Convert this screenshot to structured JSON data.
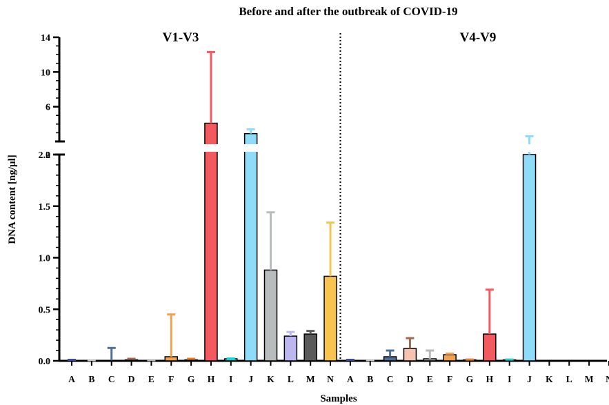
{
  "chart_data": {
    "type": "bar",
    "title": "Before and after the outbreak of COVID-19",
    "xlabel": "Samples",
    "ylabel": "DNA content [ng/µl]",
    "y_axis_break": {
      "lower_range": [
        0,
        2.0
      ],
      "upper_range": [
        2,
        14
      ],
      "lower_ticks": [
        "0.0",
        "0.5",
        "1.0",
        "1.5",
        "2.0"
      ],
      "upper_ticks": [
        "2",
        "6",
        "10",
        "14"
      ]
    },
    "groups": [
      {
        "name": "V1-V3",
        "categories": [
          "A",
          "B",
          "C",
          "D",
          "E",
          "F",
          "G",
          "H",
          "I",
          "J",
          "K",
          "L",
          "M",
          "N"
        ],
        "values": [
          0.005,
          0.003,
          0.005,
          0.01,
          0.003,
          0.04,
          0.01,
          4.1,
          0.02,
          2.9,
          0.88,
          0.24,
          0.26,
          0.82
        ],
        "errors": [
          0.005,
          0.003,
          0.12,
          0.01,
          0.003,
          0.41,
          0.01,
          8.2,
          0.003,
          0.5,
          0.56,
          0.04,
          0.03,
          0.52
        ]
      },
      {
        "name": "V4-V9",
        "categories": [
          "A",
          "B",
          "C",
          "D",
          "E",
          "F",
          "G",
          "H",
          "I",
          "J",
          "K",
          "L",
          "M",
          "N"
        ],
        "values": [
          0.005,
          0.003,
          0.04,
          0.12,
          0.02,
          0.06,
          0.01,
          0.26,
          0.01,
          2.0,
          0,
          0,
          0,
          0
        ],
        "errors": [
          0.005,
          0.003,
          0.06,
          0.1,
          0.08,
          0.01,
          0.003,
          0.43,
          0.003,
          0.6,
          0,
          0,
          0,
          0
        ]
      }
    ],
    "colors": [
      "#3a4a9a",
      "#c8c8c8",
      "#4f6f94",
      "#a06a52",
      "#b8b8b8",
      "#f2a14f",
      "#f07d1c",
      "#f25a5f",
      "#19d4d4",
      "#8fdcf8",
      "#b8bcbc",
      "#bcb8ef",
      "#5a5a5a",
      "#f8c44f"
    ],
    "bar_fill_alt": {
      "V4-V9": {
        "D": "#f6c2b2"
      }
    },
    "grid": false,
    "legend": "none"
  }
}
